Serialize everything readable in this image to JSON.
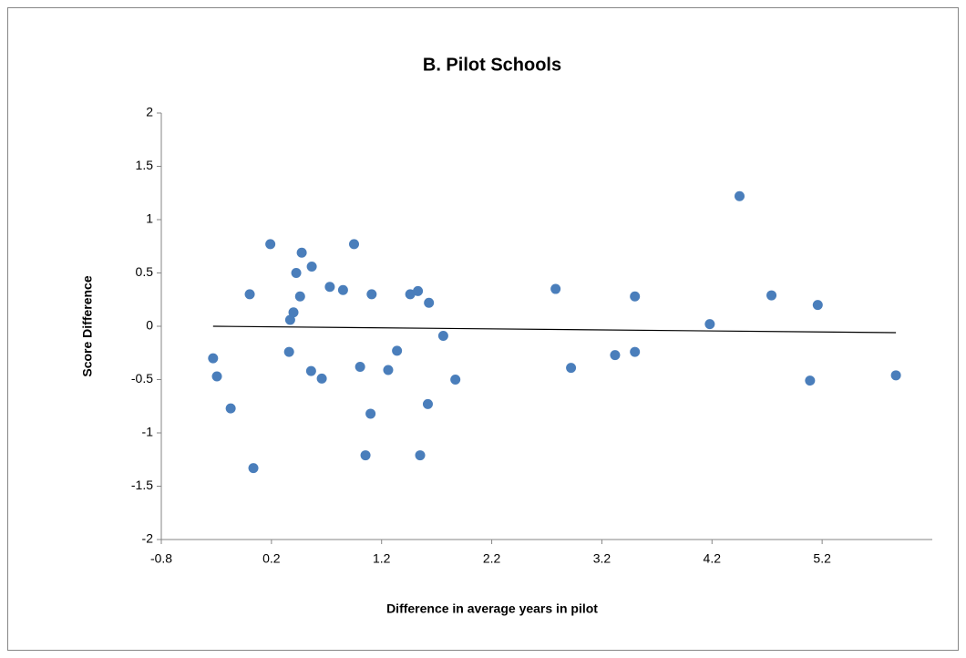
{
  "chart_data": {
    "type": "scatter",
    "title": "B.  Pilot Schools",
    "x_label": "Difference in average years in pilot",
    "y_label": "Score Difference",
    "color": "#4a7ebb",
    "x": [
      -0.33,
      -0.295,
      -0.17,
      0.003,
      0.036,
      0.19,
      0.36,
      0.37,
      0.4,
      0.425,
      0.46,
      0.475,
      0.56,
      0.566,
      0.657,
      0.73,
      0.85,
      0.95,
      1.005,
      1.054,
      1.1,
      1.11,
      1.26,
      1.34,
      1.46,
      1.53,
      1.55,
      1.62,
      1.63,
      1.76,
      1.87,
      2.78,
      2.92,
      3.32,
      3.5,
      3.5,
      4.18,
      4.45,
      4.74,
      5.09,
      5.16,
      5.87
    ],
    "y": [
      -0.3,
      -0.47,
      -0.77,
      0.3,
      -1.33,
      0.77,
      -0.24,
      0.06,
      0.13,
      0.5,
      0.28,
      0.69,
      -0.42,
      0.56,
      -0.49,
      0.37,
      0.34,
      0.77,
      -0.38,
      -1.21,
      -0.82,
      0.3,
      -0.41,
      -0.23,
      0.3,
      0.33,
      -1.21,
      -0.73,
      0.22,
      -0.09,
      -0.5,
      0.35,
      -0.39,
      -0.27,
      0.28,
      -0.24,
      0.02,
      1.22,
      0.29,
      -0.51,
      0.2,
      -0.46
    ],
    "trendline": {
      "x": [
        -0.33,
        5.87
      ],
      "y": [
        0.0,
        -0.06
      ],
      "color": "#000000"
    },
    "xlim": [
      -0.8,
      6.2
    ],
    "xticks": [
      -0.8,
      0.2,
      1.2,
      2.2,
      3.2,
      4.2,
      5.2
    ],
    "ylim": [
      -2,
      2
    ],
    "yticks": [
      -2,
      -1.5,
      -1,
      -0.5,
      0,
      0.5,
      1,
      1.5,
      2
    ],
    "grid": false
  }
}
